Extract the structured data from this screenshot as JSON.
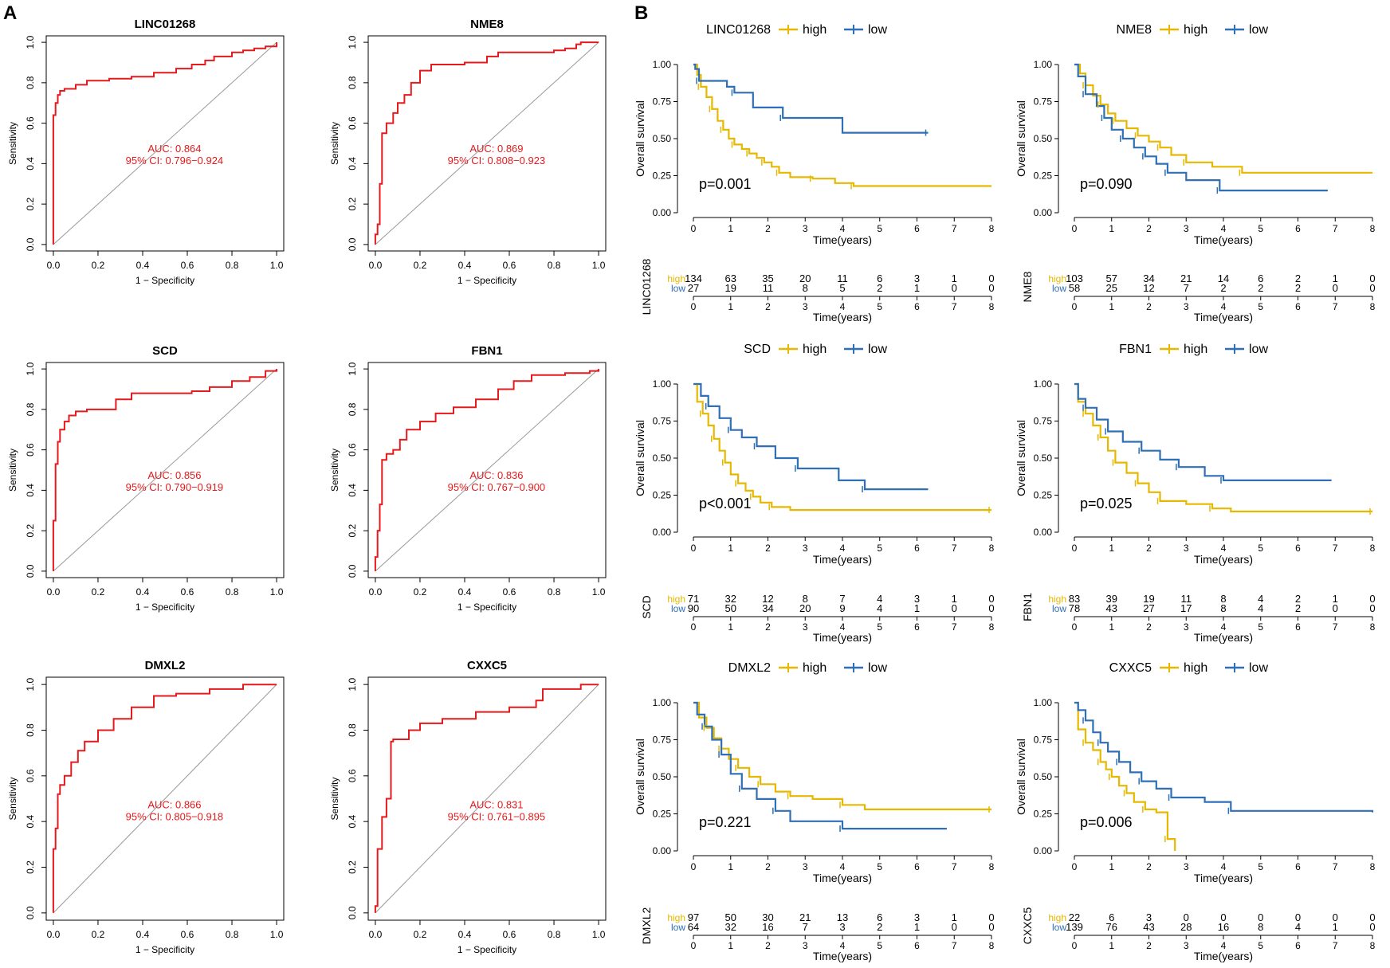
{
  "figure": {
    "panel_a_label": "A",
    "panel_b_label": "B"
  },
  "colors": {
    "roc_curve": "#e41a1c",
    "diagonal": "#999999",
    "high": "#e7b800",
    "low": "#2e6fb5",
    "axis": "#000000"
  },
  "chart_data": [
    {
      "type": "line",
      "kind": "roc",
      "title": "LINC01268",
      "xlabel": "1 − Specificity",
      "ylabel": "Sensitivity",
      "xlim": [
        0,
        1
      ],
      "ylim": [
        0,
        1
      ],
      "ticks": [
        "0.0",
        "0.2",
        "0.4",
        "0.6",
        "0.8",
        "1.0"
      ],
      "auc_label": "AUC: 0.864",
      "ci_label": "95% CI: 0.796−0.924",
      "fpr": [
        0,
        0,
        0.01,
        0.01,
        0.02,
        0.02,
        0.03,
        0.03,
        0.05,
        0.05,
        0.1,
        0.1,
        0.15,
        0.15,
        0.25,
        0.25,
        0.35,
        0.35,
        0.45,
        0.45,
        0.55,
        0.55,
        0.62,
        0.62,
        0.68,
        0.68,
        0.72,
        0.72,
        0.8,
        0.8,
        0.85,
        0.85,
        0.9,
        0.9,
        0.95,
        0.95,
        1,
        1
      ],
      "tpr": [
        0,
        0.64,
        0.64,
        0.7,
        0.7,
        0.74,
        0.74,
        0.76,
        0.76,
        0.77,
        0.77,
        0.79,
        0.79,
        0.81,
        0.81,
        0.82,
        0.82,
        0.83,
        0.83,
        0.85,
        0.85,
        0.87,
        0.87,
        0.89,
        0.89,
        0.91,
        0.91,
        0.93,
        0.93,
        0.95,
        0.95,
        0.96,
        0.96,
        0.97,
        0.97,
        0.98,
        0.98,
        1
      ]
    },
    {
      "type": "line",
      "kind": "roc",
      "title": "NME8",
      "xlabel": "1 − Specificity",
      "ylabel": "Sensitivity",
      "xlim": [
        0,
        1
      ],
      "ylim": [
        0,
        1
      ],
      "ticks": [
        "0.0",
        "0.2",
        "0.4",
        "0.6",
        "0.8",
        "1.0"
      ],
      "auc_label": "AUC: 0.869",
      "ci_label": "95% CI: 0.808−0.923",
      "fpr": [
        0,
        0,
        0.01,
        0.01,
        0.02,
        0.02,
        0.03,
        0.03,
        0.05,
        0.05,
        0.08,
        0.08,
        0.1,
        0.1,
        0.13,
        0.13,
        0.16,
        0.16,
        0.2,
        0.2,
        0.25,
        0.25,
        0.4,
        0.4,
        0.5,
        0.5,
        0.55,
        0.55,
        0.8,
        0.8,
        0.85,
        0.85,
        0.9,
        0.9,
        0.92,
        0.92,
        1,
        1
      ],
      "tpr": [
        0,
        0.05,
        0.05,
        0.1,
        0.1,
        0.3,
        0.3,
        0.55,
        0.55,
        0.6,
        0.6,
        0.65,
        0.65,
        0.7,
        0.7,
        0.74,
        0.74,
        0.8,
        0.8,
        0.86,
        0.86,
        0.89,
        0.89,
        0.9,
        0.9,
        0.93,
        0.93,
        0.95,
        0.95,
        0.96,
        0.96,
        0.97,
        0.97,
        0.99,
        0.99,
        1,
        1,
        1
      ]
    },
    {
      "type": "line",
      "kind": "roc",
      "title": "SCD",
      "xlabel": "1 − Specificity",
      "ylabel": "Sensitivity",
      "xlim": [
        0,
        1
      ],
      "ylim": [
        0,
        1
      ],
      "ticks": [
        "0.0",
        "0.2",
        "0.4",
        "0.6",
        "0.8",
        "1.0"
      ],
      "auc_label": "AUC: 0.856",
      "ci_label": "95% CI: 0.790−0.919",
      "fpr": [
        0,
        0,
        0.01,
        0.01,
        0.02,
        0.02,
        0.03,
        0.03,
        0.05,
        0.05,
        0.07,
        0.07,
        0.1,
        0.1,
        0.15,
        0.15,
        0.28,
        0.28,
        0.35,
        0.35,
        0.62,
        0.62,
        0.7,
        0.7,
        0.8,
        0.8,
        0.88,
        0.88,
        0.95,
        0.95,
        1,
        1
      ],
      "tpr": [
        0,
        0.25,
        0.25,
        0.53,
        0.53,
        0.64,
        0.64,
        0.7,
        0.7,
        0.74,
        0.74,
        0.77,
        0.77,
        0.79,
        0.79,
        0.8,
        0.8,
        0.85,
        0.85,
        0.88,
        0.88,
        0.89,
        0.89,
        0.91,
        0.91,
        0.94,
        0.94,
        0.96,
        0.96,
        0.99,
        0.99,
        1
      ]
    },
    {
      "type": "line",
      "kind": "roc",
      "title": "FBN1",
      "xlabel": "1 − Specificity",
      "ylabel": "Sensitivity",
      "xlim": [
        0,
        1
      ],
      "ylim": [
        0,
        1
      ],
      "ticks": [
        "0.0",
        "0.2",
        "0.4",
        "0.6",
        "0.8",
        "1.0"
      ],
      "auc_label": "AUC: 0.836",
      "ci_label": "95% CI: 0.767−0.900",
      "fpr": [
        0,
        0,
        0.01,
        0.01,
        0.02,
        0.02,
        0.03,
        0.03,
        0.05,
        0.05,
        0.08,
        0.08,
        0.11,
        0.11,
        0.14,
        0.14,
        0.2,
        0.2,
        0.27,
        0.27,
        0.35,
        0.35,
        0.45,
        0.45,
        0.55,
        0.55,
        0.62,
        0.62,
        0.7,
        0.7,
        0.85,
        0.85,
        0.96,
        0.96,
        1,
        1
      ],
      "tpr": [
        0,
        0.07,
        0.07,
        0.2,
        0.2,
        0.33,
        0.33,
        0.55,
        0.55,
        0.58,
        0.58,
        0.6,
        0.6,
        0.65,
        0.65,
        0.7,
        0.7,
        0.74,
        0.74,
        0.78,
        0.78,
        0.81,
        0.81,
        0.85,
        0.85,
        0.9,
        0.9,
        0.94,
        0.94,
        0.97,
        0.97,
        0.98,
        0.98,
        0.99,
        0.99,
        1
      ]
    },
    {
      "type": "line",
      "kind": "roc",
      "title": "DMXL2",
      "xlabel": "1 − Specificity",
      "ylabel": "Sensitivity",
      "xlim": [
        0,
        1
      ],
      "ylim": [
        0,
        1
      ],
      "ticks": [
        "0.0",
        "0.2",
        "0.4",
        "0.6",
        "0.8",
        "1.0"
      ],
      "auc_label": "AUC: 0.866",
      "ci_label": "95% CI: 0.805−0.918",
      "fpr": [
        0,
        0,
        0.01,
        0.01,
        0.02,
        0.02,
        0.03,
        0.03,
        0.05,
        0.05,
        0.08,
        0.08,
        0.11,
        0.11,
        0.14,
        0.14,
        0.2,
        0.2,
        0.27,
        0.27,
        0.35,
        0.35,
        0.45,
        0.45,
        0.55,
        0.55,
        0.7,
        0.7,
        0.85,
        0.85,
        1,
        1
      ],
      "tpr": [
        0,
        0.28,
        0.28,
        0.37,
        0.37,
        0.52,
        0.52,
        0.56,
        0.56,
        0.6,
        0.6,
        0.66,
        0.66,
        0.71,
        0.71,
        0.75,
        0.75,
        0.8,
        0.8,
        0.85,
        0.85,
        0.9,
        0.9,
        0.95,
        0.95,
        0.96,
        0.96,
        0.98,
        0.98,
        1,
        1,
        1
      ]
    },
    {
      "type": "line",
      "kind": "roc",
      "title": "CXXC5",
      "xlabel": "1 − Specificity",
      "ylabel": "Sensitivity",
      "xlim": [
        0,
        1
      ],
      "ylim": [
        0,
        1
      ],
      "ticks": [
        "0.0",
        "0.2",
        "0.4",
        "0.6",
        "0.8",
        "1.0"
      ],
      "auc_label": "AUC: 0.831",
      "ci_label": "95% CI: 0.761−0.895",
      "fpr": [
        0,
        0,
        0.01,
        0.01,
        0.03,
        0.03,
        0.05,
        0.05,
        0.07,
        0.07,
        0.08,
        0.08,
        0.15,
        0.15,
        0.2,
        0.2,
        0.3,
        0.3,
        0.45,
        0.45,
        0.6,
        0.6,
        0.72,
        0.72,
        0.75,
        0.75,
        0.92,
        0.92,
        1,
        1
      ],
      "tpr": [
        0,
        0.03,
        0.03,
        0.28,
        0.28,
        0.42,
        0.42,
        0.5,
        0.5,
        0.75,
        0.75,
        0.76,
        0.76,
        0.8,
        0.8,
        0.83,
        0.83,
        0.85,
        0.85,
        0.88,
        0.88,
        0.9,
        0.9,
        0.93,
        0.93,
        0.98,
        0.98,
        1,
        1,
        1
      ]
    },
    {
      "type": "line",
      "kind": "km",
      "gene": "LINC01268",
      "legend_high": "high",
      "legend_low": "low",
      "ylabel": "Overall survival",
      "xlabel": "Time(years)",
      "xlim": [
        0,
        8
      ],
      "ylim": [
        0,
        1
      ],
      "x_ticks": [
        "0",
        "1",
        "2",
        "3",
        "4",
        "5",
        "6",
        "7",
        "8"
      ],
      "y_ticks": [
        "0.00",
        "0.25",
        "0.50",
        "0.75",
        "1.00"
      ],
      "p_label": "p=0.001",
      "risk_high_label": "high",
      "risk_low_label": "low",
      "risk_high": [
        "134",
        "63",
        "35",
        "20",
        "11",
        "6",
        "3",
        "1",
        "0"
      ],
      "risk_low": [
        "27",
        "19",
        "11",
        "8",
        "5",
        "2",
        "1",
        "0",
        "0"
      ],
      "high_t": [
        0,
        0.1,
        0.2,
        0.35,
        0.5,
        0.65,
        0.8,
        0.95,
        1.1,
        1.3,
        1.5,
        1.7,
        1.9,
        2.1,
        2.3,
        2.6,
        3.2,
        3.8,
        4.3,
        8
      ],
      "high_s": [
        1,
        0.93,
        0.85,
        0.78,
        0.7,
        0.62,
        0.56,
        0.5,
        0.46,
        0.43,
        0.4,
        0.37,
        0.34,
        0.31,
        0.27,
        0.24,
        0.23,
        0.2,
        0.18,
        0.18
      ],
      "low_t": [
        0,
        0.05,
        0.15,
        0.9,
        1.1,
        1.6,
        2.4,
        4,
        6.3
      ],
      "low_s": [
        1,
        0.97,
        0.89,
        0.85,
        0.81,
        0.71,
        0.64,
        0.54,
        0.54
      ]
    },
    {
      "type": "line",
      "kind": "km",
      "gene": "NME8",
      "legend_high": "high",
      "legend_low": "low",
      "ylabel": "Overall survival",
      "xlabel": "Time(years)",
      "xlim": [
        0,
        8
      ],
      "ylim": [
        0,
        1
      ],
      "x_ticks": [
        "0",
        "1",
        "2",
        "3",
        "4",
        "5",
        "6",
        "7",
        "8"
      ],
      "y_ticks": [
        "0.00",
        "0.25",
        "0.50",
        "0.75",
        "1.00"
      ],
      "p_label": "p=0.090",
      "risk_high_label": "high",
      "risk_low_label": "low",
      "risk_high": [
        "103",
        "57",
        "34",
        "21",
        "14",
        "6",
        "2",
        "1",
        "0"
      ],
      "risk_low": [
        "58",
        "25",
        "12",
        "7",
        "2",
        "2",
        "2",
        "0",
        "0"
      ],
      "high_t": [
        0,
        0.15,
        0.3,
        0.5,
        0.7,
        0.9,
        1.1,
        1.4,
        1.7,
        2.0,
        2.3,
        2.6,
        3.0,
        3.7,
        4.5,
        8
      ],
      "high_s": [
        1,
        0.94,
        0.86,
        0.79,
        0.73,
        0.67,
        0.62,
        0.57,
        0.52,
        0.48,
        0.44,
        0.39,
        0.34,
        0.31,
        0.27,
        0.27
      ],
      "low_t": [
        0,
        0.1,
        0.3,
        0.6,
        0.8,
        1.0,
        1.3,
        1.6,
        1.9,
        2.2,
        2.5,
        3.0,
        3.9,
        6.8
      ],
      "low_s": [
        1,
        0.92,
        0.8,
        0.72,
        0.64,
        0.56,
        0.5,
        0.44,
        0.38,
        0.33,
        0.27,
        0.22,
        0.15,
        0.15
      ]
    },
    {
      "type": "line",
      "kind": "km",
      "gene": "SCD",
      "legend_high": "high",
      "legend_low": "low",
      "ylabel": "Overall survival",
      "xlabel": "Time(years)",
      "xlim": [
        0,
        8
      ],
      "ylim": [
        0,
        1
      ],
      "x_ticks": [
        "0",
        "1",
        "2",
        "3",
        "4",
        "5",
        "6",
        "7",
        "8"
      ],
      "y_ticks": [
        "0.00",
        "0.25",
        "0.50",
        "0.75",
        "1.00"
      ],
      "p_label": "p<0.001",
      "risk_high_label": "high",
      "risk_low_label": "low",
      "risk_high": [
        "71",
        "32",
        "12",
        "8",
        "7",
        "4",
        "3",
        "1",
        "0"
      ],
      "risk_low": [
        "90",
        "50",
        "34",
        "20",
        "9",
        "4",
        "1",
        "0",
        "0"
      ],
      "high_t": [
        0,
        0.1,
        0.25,
        0.4,
        0.55,
        0.7,
        0.85,
        1.0,
        1.2,
        1.4,
        1.6,
        1.8,
        2.1,
        2.6,
        8
      ],
      "high_s": [
        1,
        0.88,
        0.8,
        0.72,
        0.63,
        0.55,
        0.47,
        0.39,
        0.33,
        0.28,
        0.24,
        0.2,
        0.17,
        0.15,
        0.15
      ],
      "low_t": [
        0,
        0.2,
        0.4,
        0.7,
        1.0,
        1.3,
        1.7,
        2.2,
        2.8,
        3.9,
        4.6,
        6.3
      ],
      "low_s": [
        1,
        0.92,
        0.85,
        0.77,
        0.69,
        0.64,
        0.58,
        0.5,
        0.43,
        0.35,
        0.29,
        0.29
      ]
    },
    {
      "type": "line",
      "kind": "km",
      "gene": "FBN1",
      "legend_high": "high",
      "legend_low": "low",
      "ylabel": "Overall survival",
      "xlabel": "Time(years)",
      "xlim": [
        0,
        8
      ],
      "ylim": [
        0,
        1
      ],
      "x_ticks": [
        "0",
        "1",
        "2",
        "3",
        "4",
        "5",
        "6",
        "7",
        "8"
      ],
      "y_ticks": [
        "0.00",
        "0.25",
        "0.50",
        "0.75",
        "1.00"
      ],
      "p_label": "p=0.025",
      "risk_high_label": "high",
      "risk_low_label": "low",
      "risk_high": [
        "83",
        "39",
        "19",
        "11",
        "8",
        "4",
        "2",
        "1",
        "0"
      ],
      "risk_low": [
        "78",
        "43",
        "27",
        "17",
        "8",
        "4",
        "2",
        "0",
        "0"
      ],
      "high_t": [
        0,
        0.1,
        0.3,
        0.5,
        0.7,
        0.9,
        1.1,
        1.4,
        1.7,
        2.0,
        2.3,
        3.0,
        3.7,
        4.2,
        8
      ],
      "high_s": [
        1,
        0.88,
        0.8,
        0.72,
        0.64,
        0.55,
        0.47,
        0.4,
        0.33,
        0.27,
        0.21,
        0.19,
        0.16,
        0.14,
        0.14
      ],
      "low_t": [
        0,
        0.1,
        0.3,
        0.6,
        0.9,
        1.3,
        1.8,
        2.3,
        2.8,
        3.5,
        4.0,
        6.9
      ],
      "low_s": [
        1,
        0.9,
        0.84,
        0.76,
        0.68,
        0.61,
        0.55,
        0.49,
        0.44,
        0.38,
        0.35,
        0.35
      ]
    },
    {
      "type": "line",
      "kind": "km",
      "gene": "DMXL2",
      "legend_high": "high",
      "legend_low": "low",
      "ylabel": "Overall survival",
      "xlabel": "Time(years)",
      "xlim": [
        0,
        8
      ],
      "ylim": [
        0,
        1
      ],
      "x_ticks": [
        "0",
        "1",
        "2",
        "3",
        "4",
        "5",
        "6",
        "7",
        "8"
      ],
      "y_ticks": [
        "0.00",
        "0.25",
        "0.50",
        "0.75",
        "1.00"
      ],
      "p_label": "p=0.221",
      "risk_high_label": "high",
      "risk_low_label": "low",
      "risk_high": [
        "97",
        "50",
        "30",
        "21",
        "13",
        "6",
        "3",
        "1",
        "0"
      ],
      "risk_low": [
        "64",
        "32",
        "16",
        "7",
        "3",
        "2",
        "1",
        "0",
        "0"
      ],
      "high_t": [
        0,
        0.15,
        0.35,
        0.55,
        0.75,
        0.95,
        1.2,
        1.5,
        1.8,
        2.2,
        2.6,
        3.2,
        4.0,
        4.6,
        8
      ],
      "high_s": [
        1,
        0.9,
        0.83,
        0.76,
        0.69,
        0.62,
        0.56,
        0.5,
        0.45,
        0.4,
        0.37,
        0.35,
        0.31,
        0.28,
        0.28
      ],
      "low_t": [
        0,
        0.1,
        0.3,
        0.5,
        0.75,
        1.0,
        1.3,
        1.7,
        2.2,
        2.6,
        4.0,
        6.8
      ],
      "low_s": [
        1,
        0.92,
        0.84,
        0.75,
        0.65,
        0.52,
        0.42,
        0.35,
        0.27,
        0.2,
        0.15,
        0.15
      ]
    },
    {
      "type": "line",
      "kind": "km",
      "gene": "CXXC5",
      "legend_high": "high",
      "legend_low": "low",
      "ylabel": "Overall survival",
      "xlabel": "Time(years)",
      "xlim": [
        0,
        8
      ],
      "ylim": [
        0,
        1
      ],
      "x_ticks": [
        "0",
        "1",
        "2",
        "3",
        "4",
        "5",
        "6",
        "7",
        "8"
      ],
      "y_ticks": [
        "0.00",
        "0.25",
        "0.50",
        "0.75",
        "1.00"
      ],
      "p_label": "p=0.006",
      "risk_high_label": "high",
      "risk_low_label": "low",
      "risk_high": [
        "22",
        "6",
        "3",
        "0",
        "0",
        "0",
        "0",
        "0",
        "0"
      ],
      "risk_low": [
        "139",
        "76",
        "43",
        "28",
        "16",
        "8",
        "4",
        "1",
        "0"
      ],
      "high_t": [
        0,
        0.1,
        0.3,
        0.5,
        0.7,
        0.85,
        1.0,
        1.2,
        1.4,
        1.6,
        1.9,
        2.2,
        2.5,
        2.7
      ],
      "high_s": [
        1,
        0.82,
        0.73,
        0.68,
        0.6,
        0.55,
        0.5,
        0.44,
        0.39,
        0.33,
        0.28,
        0.26,
        0.08,
        0
      ],
      "low_t": [
        0,
        0.1,
        0.3,
        0.5,
        0.7,
        0.9,
        1.2,
        1.5,
        1.8,
        2.2,
        2.6,
        3.5,
        4.2,
        8
      ],
      "low_s": [
        1,
        0.95,
        0.88,
        0.8,
        0.73,
        0.67,
        0.6,
        0.53,
        0.47,
        0.42,
        0.36,
        0.33,
        0.27,
        0.26
      ]
    }
  ]
}
